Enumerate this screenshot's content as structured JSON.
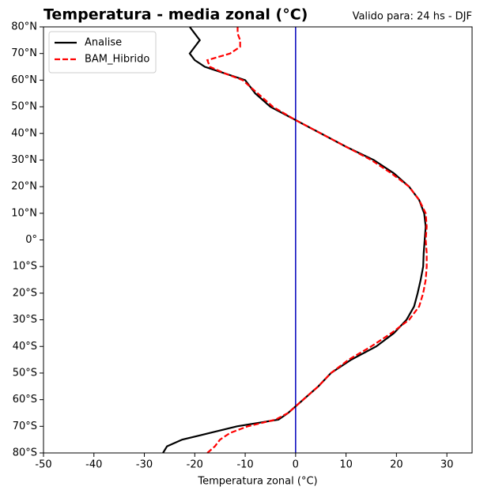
{
  "chart_data": {
    "type": "line",
    "title": "Temperatura - media zonal (°C)",
    "subtitle": "Valido para: 24 hs - DJF",
    "xlabel": "Temperatura zonal (°C)",
    "y": [
      -80,
      -77.5,
      -75,
      -72.5,
      -70,
      -67.5,
      -65,
      -62.5,
      -60,
      -55,
      -50,
      -45,
      -40,
      -35,
      -30,
      -25,
      -20,
      -15,
      -10,
      -5,
      0,
      5,
      10,
      15,
      20,
      25,
      30,
      35,
      40,
      45,
      50,
      55,
      60,
      62.5,
      65,
      67.5,
      70,
      72.5,
      75,
      77.5,
      80
    ],
    "series": [
      {
        "name": "Analise",
        "color": "#000000",
        "linestyle": "solid",
        "values": [
          -26.3,
          -25.5,
          -22.5,
          -17,
          -11.6,
          -3.4,
          -1.5,
          0,
          1.5,
          4.5,
          7,
          11,
          16,
          19.5,
          22,
          23.5,
          24.2,
          24.8,
          25.3,
          25.4,
          25.6,
          25.8,
          25.5,
          24.5,
          22.5,
          19.5,
          15.5,
          10,
          5,
          0,
          -5,
          -8,
          -10,
          -14,
          -18,
          -20,
          -21,
          -20,
          -19,
          -20,
          -21
        ]
      },
      {
        "name": "BAM_Hibrido",
        "color": "#ff0000",
        "linestyle": "dashed",
        "values": [
          -17.5,
          -16,
          -15,
          -13,
          -9.5,
          -4,
          -1.5,
          0,
          1.5,
          4.5,
          7,
          10.5,
          15,
          19,
          22.5,
          24.5,
          25.3,
          25.8,
          26,
          26,
          25.8,
          26,
          25.8,
          24.5,
          22.5,
          19,
          15,
          10,
          5,
          0,
          -4.5,
          -7.5,
          -10.5,
          -14,
          -17,
          -17.5,
          -13,
          -11,
          -11,
          -11.5,
          -11.5
        ]
      }
    ],
    "reference_line": {
      "value": 0,
      "color": "#0000bb"
    },
    "xlim": [
      -50,
      35
    ],
    "xticks": [
      -50,
      -40,
      -30,
      -20,
      -10,
      0,
      10,
      20,
      30
    ],
    "ylim": [
      -80,
      80
    ],
    "yticks": [
      {
        "value": -80,
        "label": "80°S"
      },
      {
        "value": -70,
        "label": "70°S"
      },
      {
        "value": -60,
        "label": "60°S"
      },
      {
        "value": -50,
        "label": "50°S"
      },
      {
        "value": -40,
        "label": "40°S"
      },
      {
        "value": -30,
        "label": "30°S"
      },
      {
        "value": -20,
        "label": "20°S"
      },
      {
        "value": -10,
        "label": "10°S"
      },
      {
        "value": 0,
        "label": "0°"
      },
      {
        "value": 10,
        "label": "10°N"
      },
      {
        "value": 20,
        "label": "20°N"
      },
      {
        "value": 30,
        "label": "30°N"
      },
      {
        "value": 40,
        "label": "40°N"
      },
      {
        "value": 50,
        "label": "50°N"
      },
      {
        "value": 60,
        "label": "60°N"
      },
      {
        "value": 70,
        "label": "70°N"
      },
      {
        "value": 80,
        "label": "80°N"
      }
    ],
    "legend": "upper left",
    "grid": false
  }
}
